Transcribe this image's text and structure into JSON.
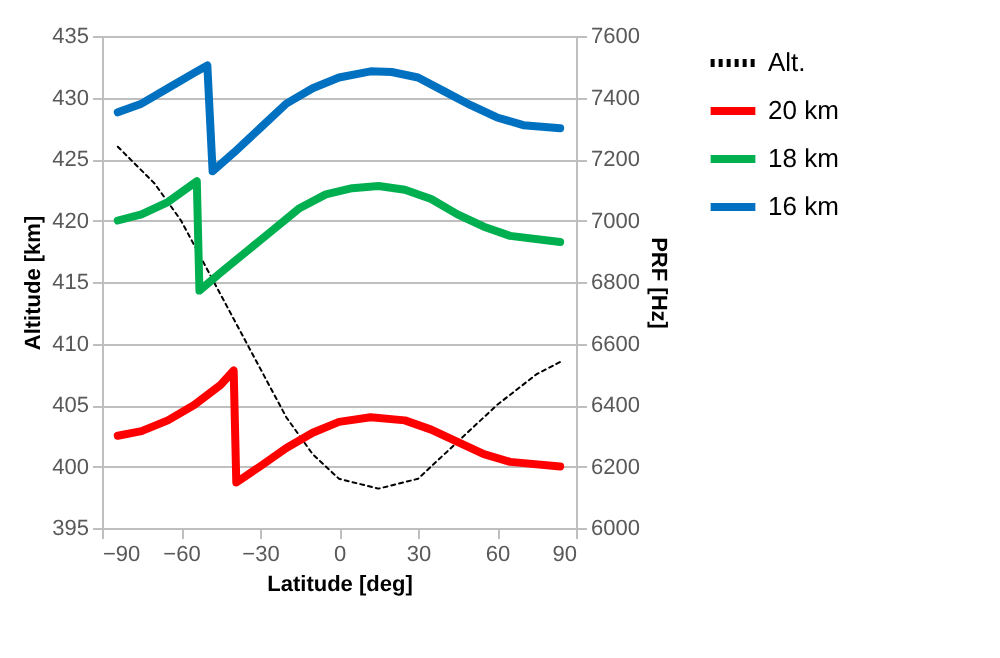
{
  "chart_data": {
    "type": "line",
    "xlabel": "Latitude [deg]",
    "ylabel": "Altitude [km]",
    "y2label": "PRF [Hz]",
    "xlim": [
      -90,
      90
    ],
    "xticks": [
      -90,
      -60,
      -30,
      0,
      30,
      60,
      90
    ],
    "ylim": [
      395,
      435
    ],
    "yticks": [
      395,
      400,
      405,
      410,
      415,
      420,
      425,
      430,
      435
    ],
    "y2lim": [
      6000,
      7600
    ],
    "y2ticks": [
      6000,
      6200,
      6400,
      6600,
      6800,
      7000,
      7200,
      7400,
      7600
    ],
    "grid": "y",
    "legend": "right",
    "marker": "none",
    "series": [
      {
        "name": "Alt.",
        "color": "#000000",
        "line_style": "dotted",
        "x": [
          -84,
          -70,
          -60,
          -50,
          -40,
          -30,
          -20,
          -10,
          0,
          15,
          30,
          45,
          60,
          75,
          84
        ],
        "values": [
          426,
          423,
          420,
          416,
          412,
          408,
          404,
          401,
          399,
          398.2,
          399,
          402,
          405,
          407.5,
          408.5
        ]
      },
      {
        "name": "20 km",
        "color": "#ff0000",
        "line_style": "solid",
        "axis": "y2",
        "x": [
          -84,
          -75,
          -65,
          -55,
          -45,
          -40,
          -39,
          -30,
          -20,
          -10,
          0,
          12,
          25,
          35,
          45,
          55,
          65,
          84
        ],
        "values": [
          6300,
          6315,
          6350,
          6400,
          6465,
          6512,
          6148,
          6200,
          6260,
          6310,
          6345,
          6360,
          6350,
          6320,
          6280,
          6240,
          6215,
          6200
        ]
      },
      {
        "name": "18 km",
        "color": "#00b050",
        "line_style": "solid",
        "axis": "y2",
        "x": [
          -84,
          -75,
          -65,
          -54,
          -53,
          -45,
          -35,
          -25,
          -15,
          -5,
          5,
          15,
          25,
          35,
          45,
          55,
          65,
          84
        ],
        "values": [
          7000,
          7020,
          7060,
          7128,
          6772,
          6830,
          6900,
          6970,
          7040,
          7085,
          7105,
          7112,
          7100,
          7070,
          7020,
          6980,
          6950,
          6930
        ]
      },
      {
        "name": "16 km",
        "color": "#0070c0",
        "line_style": "solid",
        "axis": "y2",
        "x": [
          -84,
          -75,
          -65,
          -55,
          -50,
          -48,
          -40,
          -30,
          -20,
          -10,
          0,
          12,
          20,
          30,
          40,
          50,
          60,
          70,
          84
        ],
        "values": [
          7352,
          7380,
          7430,
          7480,
          7504,
          7160,
          7220,
          7300,
          7380,
          7430,
          7465,
          7485,
          7483,
          7465,
          7420,
          7375,
          7335,
          7310,
          7300
        ]
      }
    ]
  }
}
